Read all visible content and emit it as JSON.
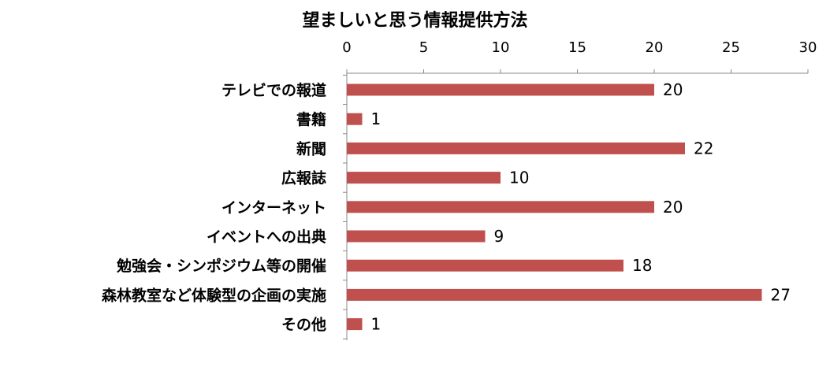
{
  "chart_data": {
    "type": "bar",
    "orientation": "horizontal",
    "title": "望ましいと思う情報提供方法",
    "categories": [
      "テレビでの報道",
      "書籍",
      "新聞",
      "広報誌",
      "インターネット",
      "イベントへの出典",
      "勉強会・シンポジウム等の開催",
      "森林教室など体験型の企画の実施",
      "その他"
    ],
    "values": [
      20,
      1,
      22,
      10,
      20,
      9,
      18,
      27,
      1
    ],
    "xlim": [
      0,
      30
    ],
    "xticks": [
      0,
      5,
      10,
      15,
      20,
      25,
      30
    ],
    "x_axis_position": "top",
    "grid": false,
    "data_labels": true,
    "bar_color": "#C0504D"
  }
}
